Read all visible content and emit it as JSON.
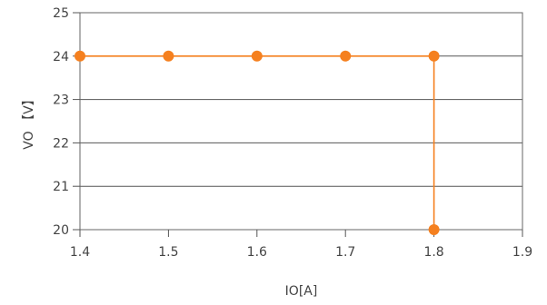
{
  "chart_data": {
    "type": "line",
    "title": "",
    "xlabel": "IO[A]",
    "ylabel": "VO 【V】",
    "xlim": [
      1.4,
      1.9
    ],
    "ylim": [
      20,
      25
    ],
    "xticks": [
      "1.4",
      "1.5",
      "1.6",
      "1.7",
      "1.8",
      "1.9"
    ],
    "yticks": [
      "20",
      "21",
      "22",
      "23",
      "24",
      "25"
    ],
    "grid": "horizontal",
    "legend": "none",
    "series": [
      {
        "color": "#f5801f",
        "x": [
          1.4,
          1.5,
          1.6,
          1.7,
          1.8,
          1.8
        ],
        "y": [
          24,
          24,
          24,
          24,
          24,
          20
        ]
      }
    ]
  }
}
